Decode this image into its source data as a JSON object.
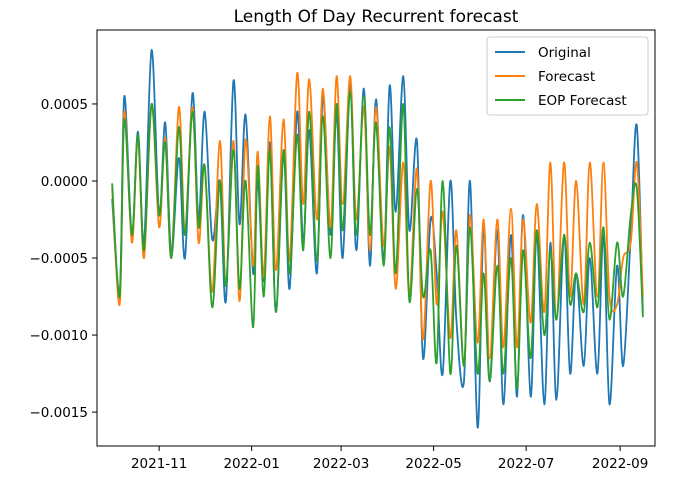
{
  "chart_data": {
    "type": "line",
    "title": "Length Of Day Recurrent forecast",
    "xlabel": "",
    "ylabel": "",
    "x_axis": {
      "type": "date",
      "range": [
        "2021-09-21",
        "2022-09-24"
      ],
      "ticks": [
        {
          "date": "2021-11-01",
          "label": "2021-11"
        },
        {
          "date": "2022-01-01",
          "label": "2022-01"
        },
        {
          "date": "2022-03-01",
          "label": "2022-03"
        },
        {
          "date": "2022-05-01",
          "label": "2022-05"
        },
        {
          "date": "2022-07-01",
          "label": "2022-07"
        },
        {
          "date": "2022-09-01",
          "label": "2022-09"
        }
      ]
    },
    "y_axis": {
      "range": [
        -0.00172,
        0.00098
      ],
      "ticks": [
        {
          "value": 0.0005,
          "label": "0.0005"
        },
        {
          "value": 0.0,
          "label": "0.0000"
        },
        {
          "value": -0.0005,
          "label": "−0.0005"
        },
        {
          "value": -0.001,
          "label": "−0.0010"
        },
        {
          "value": -0.0015,
          "label": "−0.0015"
        }
      ]
    },
    "grid": false,
    "legend": {
      "position": "top-right"
    },
    "colors": {
      "Original": "#1f77b4",
      "Forecast": "#ff7f0e",
      "EOP Forecast": "#2ca02c"
    },
    "series": [
      {
        "name": "Original",
        "x": [
          "2021-10-01",
          "2021-10-06",
          "2021-10-09",
          "2021-10-14",
          "2021-10-18",
          "2021-10-22",
          "2021-10-27",
          "2021-11-01",
          "2021-11-05",
          "2021-11-09",
          "2021-11-14",
          "2021-11-18",
          "2021-11-23",
          "2021-11-27",
          "2021-12-01",
          "2021-12-06",
          "2021-12-11",
          "2021-12-15",
          "2021-12-20",
          "2021-12-24",
          "2021-12-28",
          "2022-01-02",
          "2022-01-05",
          "2022-01-09",
          "2022-01-13",
          "2022-01-17",
          "2022-01-22",
          "2022-01-26",
          "2022-01-31",
          "2022-02-04",
          "2022-02-08",
          "2022-02-13",
          "2022-02-17",
          "2022-02-22",
          "2022-02-26",
          "2022-03-02",
          "2022-03-07",
          "2022-03-11",
          "2022-03-16",
          "2022-03-20",
          "2022-03-24",
          "2022-03-29",
          "2022-04-02",
          "2022-04-06",
          "2022-04-11",
          "2022-04-15",
          "2022-04-20",
          "2022-04-24",
          "2022-04-29",
          "2022-05-03",
          "2022-05-07",
          "2022-05-12",
          "2022-05-16",
          "2022-05-21",
          "2022-05-25",
          "2022-05-30",
          "2022-06-03",
          "2022-06-07",
          "2022-06-12",
          "2022-06-16",
          "2022-06-21",
          "2022-06-25",
          "2022-06-29",
          "2022-07-04",
          "2022-07-08",
          "2022-07-13",
          "2022-07-17",
          "2022-07-21",
          "2022-07-26",
          "2022-07-30",
          "2022-08-03",
          "2022-08-08",
          "2022-08-12",
          "2022-08-17",
          "2022-08-21",
          "2022-08-25",
          "2022-08-30",
          "2022-09-03",
          "2022-09-08",
          "2022-09-12",
          "2022-09-16"
        ],
        "values": [
          -0.00012,
          -0.00072,
          0.00055,
          -0.00035,
          0.00032,
          -0.0004,
          0.00085,
          -0.00022,
          0.00038,
          -0.00048,
          0.00015,
          -0.0005,
          0.00057,
          -0.00025,
          0.00045,
          -0.00038,
          0.0,
          -0.00078,
          0.00065,
          -0.00028,
          0.00043,
          -0.0006,
          0.0,
          -0.00065,
          0.00025,
          -0.00085,
          0.00018,
          -0.0007,
          0.00045,
          -0.0004,
          0.00033,
          -0.0006,
          0.00055,
          -0.00035,
          0.00045,
          -0.0005,
          0.00062,
          -0.00045,
          0.0006,
          -0.00055,
          0.00053,
          -0.00052,
          0.00062,
          -0.0002,
          0.00068,
          -0.00032,
          0.00026,
          -0.00115,
          -0.00025,
          -0.0006,
          -0.00125,
          0.0,
          -0.0009,
          -0.0013,
          0.0,
          -0.0016,
          -0.00028,
          -0.0013,
          -0.00032,
          -0.00145,
          -0.00035,
          -0.0014,
          -0.00022,
          -0.0014,
          -0.00035,
          -0.00145,
          -0.0004,
          -0.00142,
          -0.00035,
          -0.00125,
          -0.0006,
          -0.0012,
          -0.0005,
          -0.00125,
          -0.00035,
          -0.00145,
          -0.00055,
          -0.0012,
          -0.00035,
          0.00036,
          -0.00085
        ]
      },
      {
        "name": "Forecast",
        "x": [
          "2021-10-01",
          "2021-10-06",
          "2021-10-09",
          "2021-10-14",
          "2021-10-18",
          "2021-10-22",
          "2021-10-27",
          "2021-11-01",
          "2021-11-05",
          "2021-11-09",
          "2021-11-14",
          "2021-11-18",
          "2021-11-23",
          "2021-11-27",
          "2021-12-01",
          "2021-12-06",
          "2021-12-11",
          "2021-12-15",
          "2021-12-20",
          "2021-12-24",
          "2021-12-28",
          "2022-01-02",
          "2022-01-05",
          "2022-01-09",
          "2022-01-13",
          "2022-01-17",
          "2022-01-22",
          "2022-01-26",
          "2022-01-31",
          "2022-02-04",
          "2022-02-08",
          "2022-02-13",
          "2022-02-17",
          "2022-02-22",
          "2022-02-26",
          "2022-03-02",
          "2022-03-07",
          "2022-03-11",
          "2022-03-16",
          "2022-03-20",
          "2022-03-24",
          "2022-03-29",
          "2022-04-02",
          "2022-04-06",
          "2022-04-11",
          "2022-04-15",
          "2022-04-20",
          "2022-04-24",
          "2022-04-29",
          "2022-05-03",
          "2022-05-07",
          "2022-05-12",
          "2022-05-16",
          "2022-05-21",
          "2022-05-25",
          "2022-05-30",
          "2022-06-03",
          "2022-06-07",
          "2022-06-12",
          "2022-06-16",
          "2022-06-21",
          "2022-06-25",
          "2022-06-29",
          "2022-07-04",
          "2022-07-08",
          "2022-07-13",
          "2022-07-17",
          "2022-07-21",
          "2022-07-26",
          "2022-07-30",
          "2022-08-03",
          "2022-08-08",
          "2022-08-12",
          "2022-08-17",
          "2022-08-21",
          "2022-08-25",
          "2022-08-30",
          "2022-09-03",
          "2022-09-08",
          "2022-09-12",
          "2022-09-16"
        ],
        "values": [
          -5e-05,
          -0.0008,
          0.00045,
          -0.0004,
          0.00028,
          -0.0005,
          0.0005,
          -0.0003,
          0.00028,
          -0.0005,
          0.00048,
          -0.0003,
          0.00048,
          -0.0004,
          0.0001,
          -0.00072,
          0.00026,
          -0.00065,
          0.00026,
          -0.00078,
          0.00027,
          -0.00055,
          0.00019,
          -0.00062,
          0.00042,
          -0.00058,
          0.0004,
          -0.00052,
          0.0007,
          -0.00015,
          0.00066,
          -0.00025,
          0.0006,
          -0.0003,
          0.00068,
          -0.00015,
          0.00068,
          -0.00025,
          0.00048,
          -0.00045,
          0.00048,
          -0.00042,
          0.00022,
          -0.0007,
          0.00012,
          -0.00075,
          8e-05,
          -0.00103,
          0.0,
          -0.0008,
          -0.0002,
          -0.00102,
          -0.00032,
          -0.0012,
          -0.00022,
          -0.00105,
          -0.00025,
          -0.00115,
          -0.00025,
          -0.00108,
          -0.00018,
          -0.00108,
          -0.00025,
          -0.00092,
          -0.00015,
          -0.00085,
          0.00012,
          -0.0009,
          0.00012,
          -0.00075,
          0.0,
          -0.0008,
          0.00012,
          -0.00075,
          0.00012,
          -0.00075,
          -0.0008,
          -0.0005,
          -0.0004,
          0.00012,
          -0.00075
        ]
      },
      {
        "name": "EOP Forecast",
        "x": [
          "2021-10-01",
          "2021-10-06",
          "2021-10-09",
          "2021-10-14",
          "2021-10-18",
          "2021-10-22",
          "2021-10-27",
          "2021-11-01",
          "2021-11-05",
          "2021-11-09",
          "2021-11-14",
          "2021-11-18",
          "2021-11-23",
          "2021-11-27",
          "2021-12-01",
          "2021-12-06",
          "2021-12-11",
          "2021-12-15",
          "2021-12-20",
          "2021-12-24",
          "2021-12-28",
          "2022-01-02",
          "2022-01-05",
          "2022-01-09",
          "2022-01-13",
          "2022-01-17",
          "2022-01-22",
          "2022-01-26",
          "2022-01-31",
          "2022-02-04",
          "2022-02-08",
          "2022-02-13",
          "2022-02-17",
          "2022-02-22",
          "2022-02-26",
          "2022-03-02",
          "2022-03-07",
          "2022-03-11",
          "2022-03-16",
          "2022-03-20",
          "2022-03-24",
          "2022-03-29",
          "2022-04-02",
          "2022-04-06",
          "2022-04-11",
          "2022-04-15",
          "2022-04-20",
          "2022-04-24",
          "2022-04-29",
          "2022-05-03",
          "2022-05-07",
          "2022-05-12",
          "2022-05-16",
          "2022-05-21",
          "2022-05-25",
          "2022-05-30",
          "2022-06-03",
          "2022-06-07",
          "2022-06-12",
          "2022-06-16",
          "2022-06-21",
          "2022-06-25",
          "2022-06-29",
          "2022-07-04",
          "2022-07-08",
          "2022-07-13",
          "2022-07-17",
          "2022-07-21",
          "2022-07-26",
          "2022-07-30",
          "2022-08-03",
          "2022-08-08",
          "2022-08-12",
          "2022-08-17",
          "2022-08-21",
          "2022-08-25",
          "2022-08-30",
          "2022-09-03",
          "2022-09-08",
          "2022-09-12",
          "2022-09-16"
        ],
        "values": [
          -2e-05,
          -0.00075,
          0.0004,
          -0.00035,
          0.0003,
          -0.00045,
          0.0005,
          -0.00022,
          0.00025,
          -0.0005,
          0.00035,
          -0.00035,
          0.00045,
          -0.0003,
          0.0001,
          -0.00082,
          0.0,
          -0.00068,
          0.0002,
          -0.0007,
          0.0,
          -0.00095,
          0.0001,
          -0.00075,
          0.0002,
          -0.00085,
          0.0002,
          -0.0006,
          0.0003,
          -0.00045,
          0.00045,
          -0.00052,
          0.00042,
          -0.0005,
          0.0005,
          -0.00032,
          0.00058,
          -0.00035,
          0.00055,
          -0.00035,
          0.00038,
          -0.00055,
          0.00035,
          -0.0006,
          0.0005,
          -0.00078,
          -5e-05,
          -0.00075,
          -0.00045,
          -0.00118,
          0.0,
          -0.00125,
          -0.00042,
          -0.0012,
          -0.0003,
          -0.00125,
          -0.0006,
          -0.0013,
          -0.00055,
          -0.00125,
          -0.0005,
          -0.00135,
          -0.00045,
          -0.00115,
          -0.00032,
          -0.001,
          -0.00045,
          -0.0009,
          -0.00035,
          -0.0008,
          -0.0006,
          -0.00085,
          -0.0004,
          -0.00082,
          -0.0003,
          -0.0009,
          -0.0004,
          -0.00075,
          -0.00022,
          -5e-05,
          -0.00088
        ]
      }
    ]
  }
}
